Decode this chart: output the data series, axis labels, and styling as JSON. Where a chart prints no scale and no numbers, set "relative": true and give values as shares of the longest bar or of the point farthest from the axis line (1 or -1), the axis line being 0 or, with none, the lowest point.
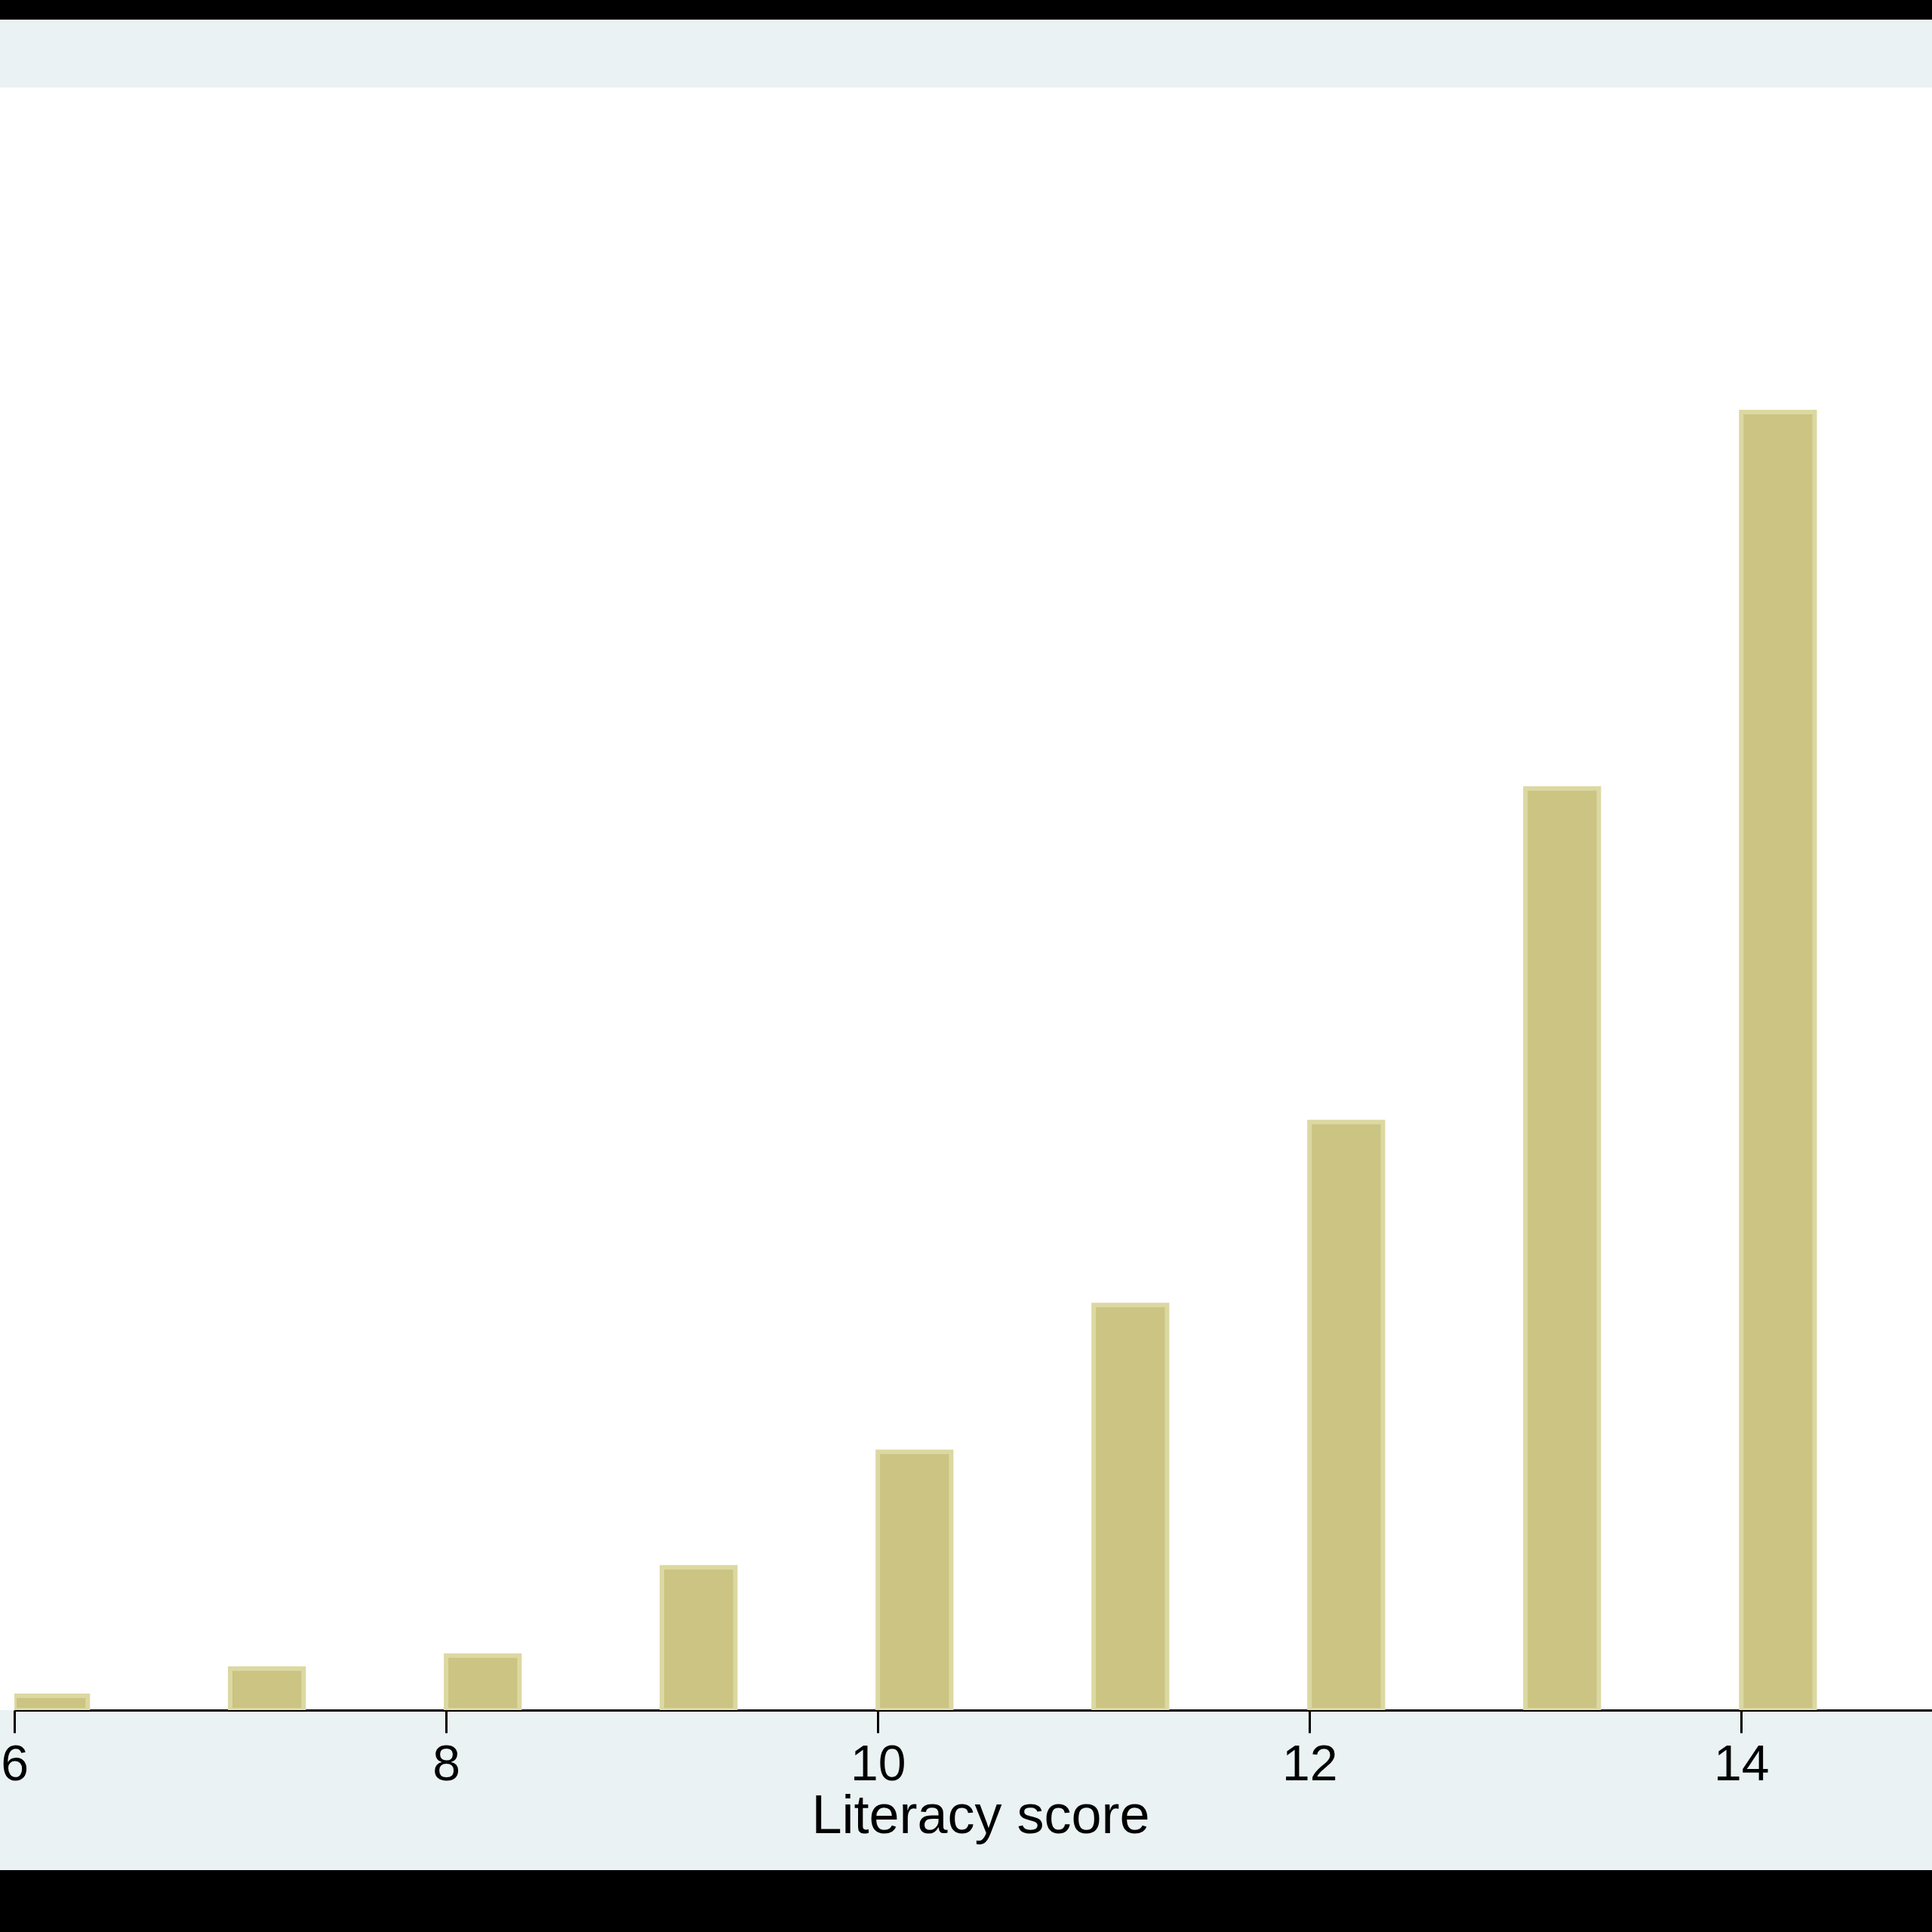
{
  "chart_data": {
    "type": "bar",
    "xlabel": "Literacy score",
    "relative": true,
    "x": [
      6.17,
      7.17,
      8.17,
      9.17,
      10.17,
      11.17,
      12.17,
      13.17,
      14.17
    ],
    "values": [
      0.011,
      0.032,
      0.042,
      0.11,
      0.199,
      0.312,
      0.453,
      0.71,
      1
    ],
    "color": "#cbc482",
    "xlim": [
      6,
      14.95
    ],
    "xticks": [
      6,
      8,
      10,
      12,
      14
    ]
  }
}
